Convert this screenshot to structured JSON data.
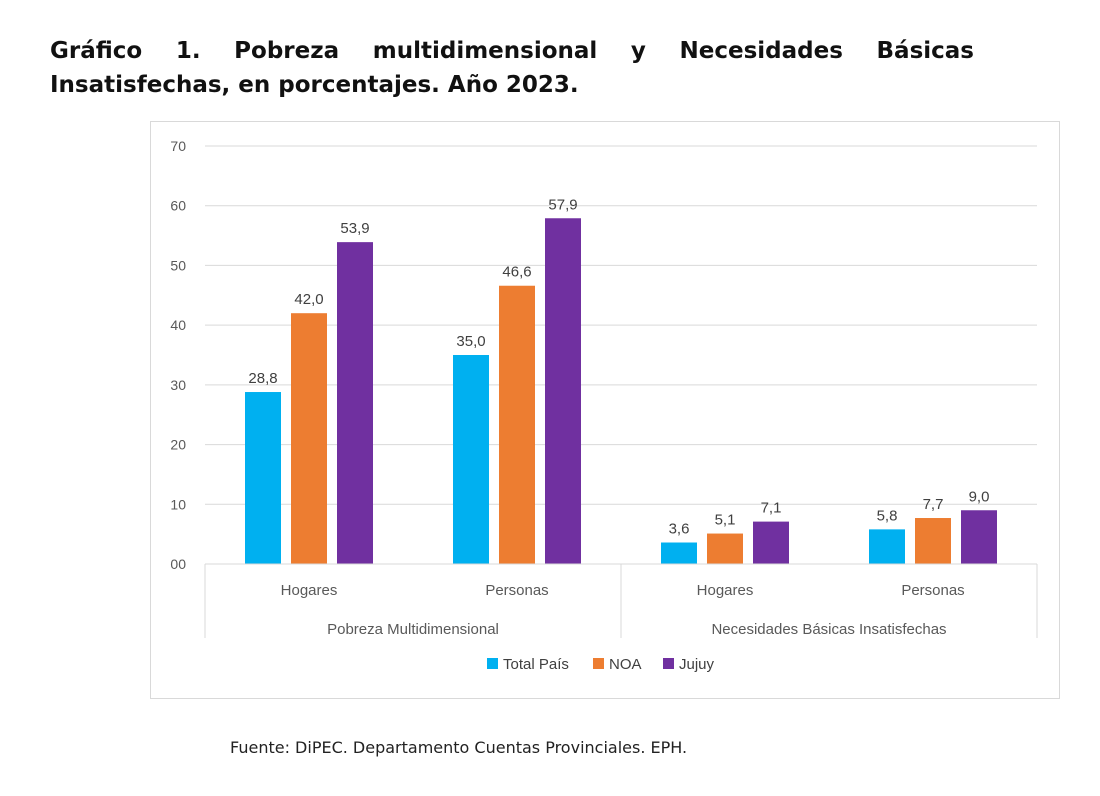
{
  "title": "Gráfico 1. Pobreza multidimensional y Necesidades Básicas Insatisfechas, en porcentajes. Año 2023.",
  "source": "Fuente: DiPEC. Departamento Cuentas Provinciales. EPH.",
  "chart_data": {
    "type": "bar",
    "title": "",
    "xlabel": "",
    "ylabel": "",
    "ylim": [
      0,
      70
    ],
    "yticks": [
      0,
      10,
      20,
      30,
      40,
      50,
      60,
      70
    ],
    "ytick_labels": [
      "00",
      "10",
      "20",
      "30",
      "40",
      "50",
      "60",
      "70"
    ],
    "grid": true,
    "legend_position": "bottom",
    "groups": [
      "Pobreza Multidimensional",
      "Necesidades Básicas Insatisfechas"
    ],
    "categories": [
      "Hogares",
      "Personas",
      "Hogares",
      "Personas"
    ],
    "category_group": [
      0,
      0,
      1,
      1
    ],
    "series": [
      {
        "name": "Total País",
        "color": "#00b0f0",
        "values": [
          28.8,
          35.0,
          3.6,
          5.8
        ],
        "labels": [
          "28,8",
          "35,0",
          "3,6",
          "5,8"
        ]
      },
      {
        "name": "NOA",
        "color": "#ed7d31",
        "values": [
          42.0,
          46.6,
          5.1,
          7.7
        ],
        "labels": [
          "42,0",
          "46,6",
          "5,1",
          "7,7"
        ]
      },
      {
        "name": "Jujuy",
        "color": "#7030a0",
        "values": [
          53.9,
          57.9,
          7.1,
          9.0
        ],
        "labels": [
          "53,9",
          "57,9",
          "7,1",
          "9,0"
        ]
      }
    ]
  }
}
